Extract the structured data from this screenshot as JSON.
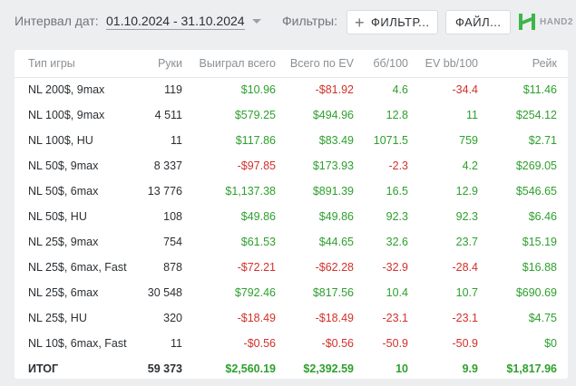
{
  "header": {
    "date_label": "Интервал дат:",
    "date_range": "01.10.2024 - 31.10.2024",
    "filters_label": "Фильтры:",
    "filter_button_label": "ФИЛЬТР...",
    "file_button_label": "ФАЙЛ...",
    "logo_text": "HAND2"
  },
  "colors": {
    "positive": "#2ea02e",
    "negative": "#d2312a",
    "background": "#eceef0"
  },
  "table": {
    "columns": [
      "Тип игры",
      "Руки",
      "Выиграл всего",
      "Всего по EV",
      "бб/100",
      "EV bb/100",
      "Рейк"
    ],
    "rows": [
      {
        "game": "NL 200$, 9max",
        "hands": "119",
        "won": "$10.96",
        "ev": "-$81.92",
        "bb100": "4.6",
        "evbb100": "-34.4",
        "rake": "$11.46"
      },
      {
        "game": "NL 100$, 9max",
        "hands": "4 511",
        "won": "$579.25",
        "ev": "$494.96",
        "bb100": "12.8",
        "evbb100": "11",
        "rake": "$254.12"
      },
      {
        "game": "NL 100$, HU",
        "hands": "11",
        "won": "$117.86",
        "ev": "$83.49",
        "bb100": "1071.5",
        "evbb100": "759",
        "rake": "$2.71"
      },
      {
        "game": "NL 50$, 9max",
        "hands": "8 337",
        "won": "-$97.85",
        "ev": "$173.93",
        "bb100": "-2.3",
        "evbb100": "4.2",
        "rake": "$269.05"
      },
      {
        "game": "NL 50$, 6max",
        "hands": "13 776",
        "won": "$1,137.38",
        "ev": "$891.39",
        "bb100": "16.5",
        "evbb100": "12.9",
        "rake": "$546.65"
      },
      {
        "game": "NL 50$, HU",
        "hands": "108",
        "won": "$49.86",
        "ev": "$49.86",
        "bb100": "92.3",
        "evbb100": "92.3",
        "rake": "$6.46"
      },
      {
        "game": "NL 25$, 9max",
        "hands": "754",
        "won": "$61.53",
        "ev": "$44.65",
        "bb100": "32.6",
        "evbb100": "23.7",
        "rake": "$15.19"
      },
      {
        "game": "NL 25$, 6max, Fast",
        "hands": "878",
        "won": "-$72.21",
        "ev": "-$62.28",
        "bb100": "-32.9",
        "evbb100": "-28.4",
        "rake": "$16.88"
      },
      {
        "game": "NL 25$, 6max",
        "hands": "30 548",
        "won": "$792.46",
        "ev": "$817.56",
        "bb100": "10.4",
        "evbb100": "10.7",
        "rake": "$690.69"
      },
      {
        "game": "NL 25$, HU",
        "hands": "320",
        "won": "-$18.49",
        "ev": "-$18.49",
        "bb100": "-23.1",
        "evbb100": "-23.1",
        "rake": "$4.75"
      },
      {
        "game": "NL 10$, 6max, Fast",
        "hands": "11",
        "won": "-$0.56",
        "ev": "-$0.56",
        "bb100": "-50.9",
        "evbb100": "-50.9",
        "rake": "$0"
      }
    ],
    "total": {
      "game": "ИТОГ",
      "hands": "59 373",
      "won": "$2,560.19",
      "ev": "$2,392.59",
      "bb100": "10",
      "evbb100": "9.9",
      "rake": "$1,817.96"
    }
  }
}
